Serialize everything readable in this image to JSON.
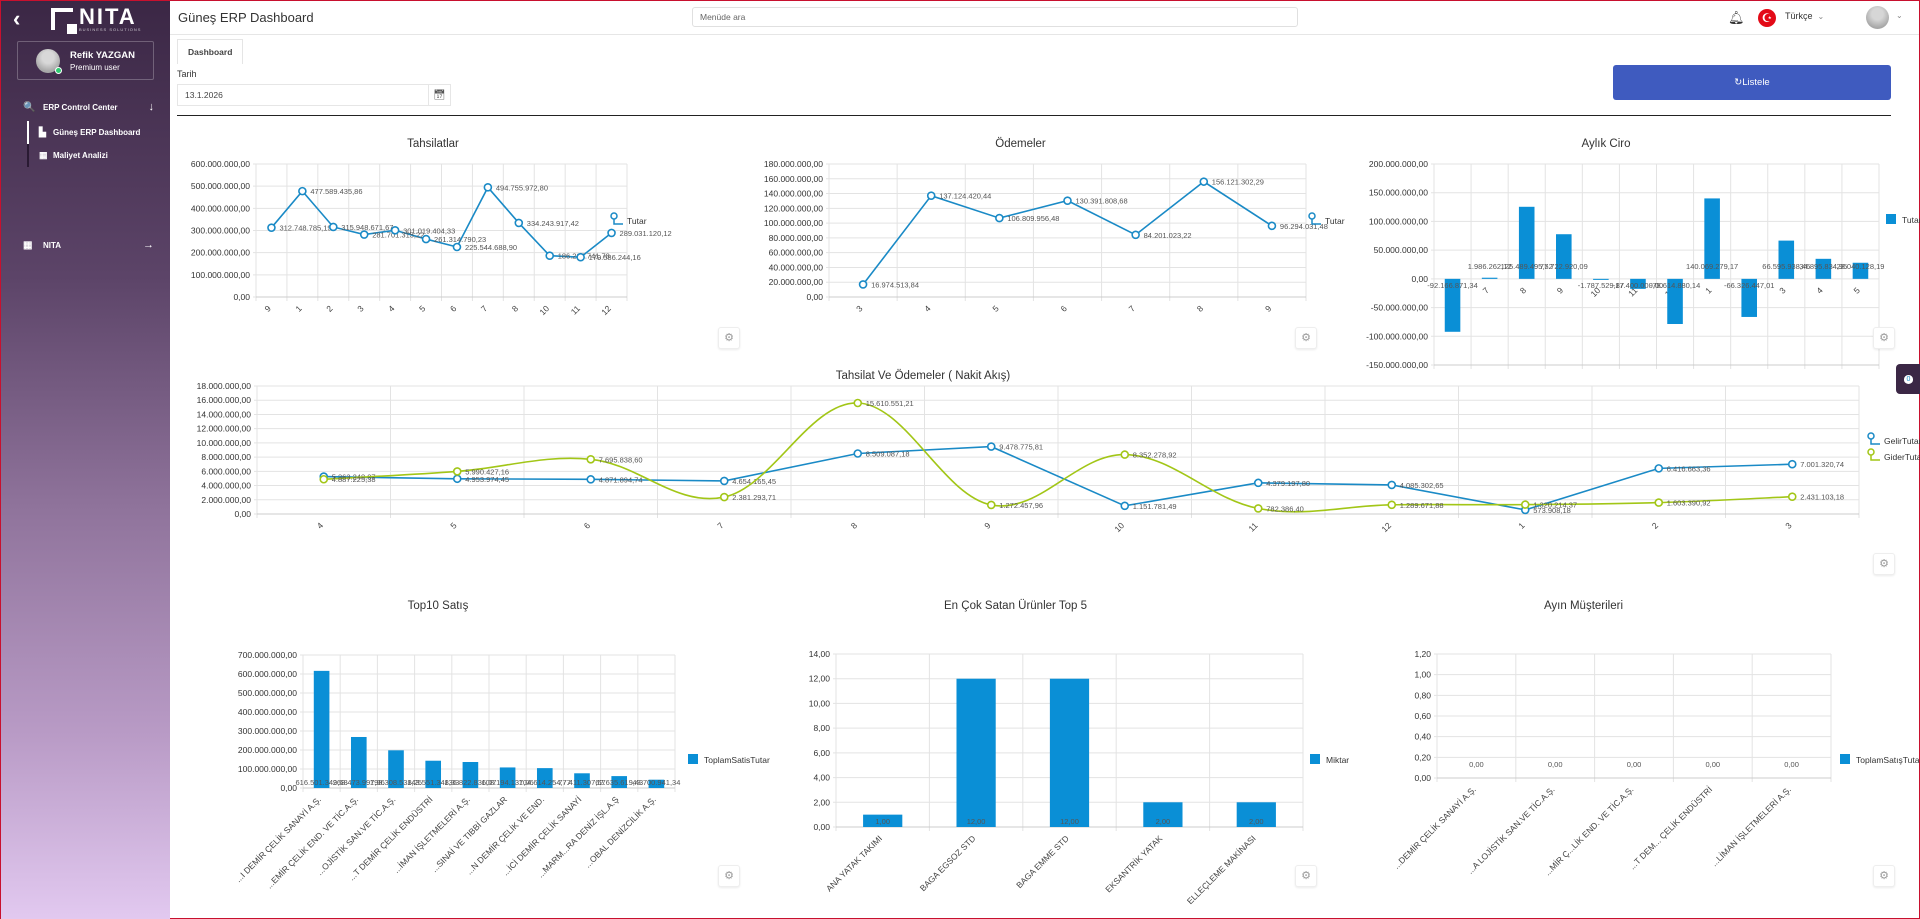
{
  "sidebar": {
    "logo_text": "NITA",
    "logo_sub": "BUSINESS SOLUTIONS",
    "user_name": "Refik YAZGAN",
    "user_role": "Premium user",
    "groups": [
      {
        "label": "ERP Control Center",
        "icon": "search-chart-icon",
        "arrow": "↓",
        "items": [
          {
            "label": "Güneş ERP Dashboard",
            "icon": "chart-icon",
            "active": true
          },
          {
            "label": "Maliyet Analizi",
            "icon": "calculator-icon",
            "active": false
          }
        ]
      },
      {
        "label": "NITA",
        "icon": "grid-icon",
        "arrow": "→",
        "items": []
      }
    ]
  },
  "header": {
    "title": "Güneş ERP Dashboard",
    "search_placeholder": "Menüde ara",
    "language": "Türkçe"
  },
  "tabs": [
    {
      "label": "Dashboard",
      "active": true
    }
  ],
  "filter": {
    "date_label": "Tarih",
    "date_value": "13.1.2026",
    "list_button": "Listele",
    "list_icon": "↻"
  },
  "chat_badge": "0",
  "chart_data": [
    {
      "id": "tahsilatlar",
      "type": "line",
      "title": "Tahsilatlar",
      "categories": [
        "9",
        "1",
        "2",
        "3",
        "4",
        "5",
        "6",
        "7",
        "8",
        "10",
        "11",
        "12"
      ],
      "series": [
        {
          "name": "Tutar",
          "color": "#1a8ac6",
          "values": [
            312748785.19,
            477589435.86,
            315948671.67,
            281701315.22,
            301019404.33,
            261314790.23,
            225544688.9,
            494755972.8,
            334243917.42,
            186264741.78,
            179586244.16,
            289031120.12
          ]
        }
      ],
      "yticks": [
        "0,00",
        "100.000.000,00",
        "200.000.000,00",
        "300.000.000,00",
        "400.000.000,00",
        "500.000.000,00",
        "600.000.000,00"
      ],
      "ylim": [
        0,
        600000000
      ],
      "grid": true,
      "legend": "right"
    },
    {
      "id": "odemeler",
      "type": "line",
      "title": "Ödemeler",
      "categories": [
        "3",
        "4",
        "5",
        "6",
        "7",
        "8",
        "9"
      ],
      "series": [
        {
          "name": "Tutar",
          "color": "#1a8ac6",
          "values": [
            16974513.84,
            137124420.44,
            106809956.48,
            130391808.68,
            84201023.22,
            156121302.29,
            96294031.48
          ]
        }
      ],
      "yticks": [
        "0,00",
        "20.000.000,00",
        "40.000.000,00",
        "60.000.000,00",
        "80.000.000,00",
        "100.000.000,00",
        "120.000.000,00",
        "140.000.000,00",
        "160.000.000,00",
        "180.000.000,00"
      ],
      "ylim": [
        0,
        180000000
      ],
      "grid": true,
      "legend": "right"
    },
    {
      "id": "aylik-ciro",
      "type": "bar",
      "title": "Aylık Ciro",
      "categories": [
        "6",
        "7",
        "8",
        "9",
        "10",
        "11",
        "12",
        "1",
        "2",
        "3",
        "4",
        "5"
      ],
      "series": [
        {
          "name": "Tutar",
          "color": "#0a8fd6",
          "values": [
            -92166871.34,
            1986262.12,
            125489495.52,
            77722920.09,
            -1787529.87,
            -17400000.0,
            -78614880.14,
            140069279.17,
            -66326447.01,
            66595938.46,
            34895834.95,
            28040128.19
          ]
        }
      ],
      "yticks": [
        "-150.000.000,00",
        "-100.000.000,00",
        "-50.000.000,00",
        "0,00",
        "50.000.000,00",
        "100.000.000,00",
        "150.000.000,00",
        "200.000.000,00"
      ],
      "ylim": [
        -150000000,
        200000000
      ],
      "grid": true,
      "legend": "right"
    },
    {
      "id": "nakit-akis",
      "type": "line",
      "title": "Tahsilat Ve Ödemeler ( Nakit Akış)",
      "categories": [
        "4",
        "5",
        "6",
        "7",
        "8",
        "9",
        "10",
        "11",
        "12",
        "1",
        "2",
        "3"
      ],
      "series": [
        {
          "name": "GelirTutar",
          "color": "#1a8ac6",
          "smooth": false,
          "values": [
            5263248.07,
            4953974.45,
            4871894.74,
            4654165.45,
            8509087.18,
            9478775.81,
            1151781.49,
            4379197.8,
            4085302.65,
            573908.18,
            6416663.36,
            7001320.74
          ]
        },
        {
          "name": "GiderTutar",
          "color": "#a2c617",
          "smooth": true,
          "values": [
            4887225.38,
            5990427.16,
            7695838.6,
            2381293.71,
            15610551.21,
            1272457.96,
            8352278.92,
            782386.4,
            1289671.88,
            1320214.37,
            1603390.92,
            2431103.18
          ]
        }
      ],
      "yticks": [
        "0,00",
        "2.000.000,00",
        "4.000.000,00",
        "6.000.000,00",
        "8.000.000,00",
        "10.000.000,00",
        "12.000.000,00",
        "14.000.000,00",
        "16.000.000,00",
        "18.000.000,00"
      ],
      "ylim": [
        0,
        18000000
      ],
      "grid": true,
      "legend": "right"
    },
    {
      "id": "top10-satis",
      "type": "bar",
      "title": "Top10  Satış",
      "categories": [
        "...I DEMİR ÇELİK SANAYİ A.Ş.",
        "...EMİR ÇELİK END. VE TİC.A.Ş.",
        "...OJİSTİK SAN.VE TİC.A.Ş.",
        "...T DEMİR ÇELİK ENDÜSTRİ",
        "...İMAN İŞLETMELERİ A.Ş.",
        "...SINAİ VE TIBBİ GAZLAR",
        "...N DEMİR ÇELİK VE END.",
        "...İCİ DEMİR ÇELİK SANAYİ",
        "...MARM...RA DENİZ İŞL.A.Ş",
        "...OBAL DENİZCİLİK A.Ş."
      ],
      "series": [
        {
          "name": "ToplamSatisTutar",
          "color": "#0a8fd6",
          "values": [
            616501349.68,
            268473997.96,
            198308538.25,
            143551348.33,
            136822836.07,
            108194137.06,
            104614254.77,
            77411307.57,
            62635619.43,
            43700941.34
          ]
        }
      ],
      "value_labels": [
        "616.501.349,68",
        "268.473.997,96",
        "198.308.538,25",
        "143.551.348,33",
        "136.822.836,07",
        "108.194.137,06",
        "104.614.254,77",
        "77.411.307,57",
        "62.635.619,43",
        "43.700.941,34"
      ],
      "yticks": [
        "0,00",
        "100.000.000,00",
        "200.000.000,00",
        "300.000.000,00",
        "400.000.000,00",
        "500.000.000,00",
        "600.000.000,00",
        "700.000.000,00"
      ],
      "ylim": [
        0,
        700000000
      ],
      "grid": true,
      "legend": "right"
    },
    {
      "id": "top5-urun",
      "type": "bar",
      "title": "En Çok Satan Ürünler Top 5",
      "categories": [
        "ANA YATAK TAKIMI",
        "BAGA EGSOZ STD",
        "BAGA EMME STD",
        "EKSANTRİK YATAK",
        "ELLEÇLEME MAKİNASI"
      ],
      "series": [
        {
          "name": "Miktar",
          "color": "#0a8fd6",
          "values": [
            1,
            12,
            12,
            2,
            2
          ]
        }
      ],
      "value_labels": [
        "1,00",
        "12,00",
        "12,00",
        "2,00",
        "2,00"
      ],
      "yticks": [
        "0,00",
        "2,00",
        "4,00",
        "6,00",
        "8,00",
        "10,00",
        "12,00",
        "14,00"
      ],
      "ylim": [
        0,
        14
      ],
      "grid": true,
      "legend": "right"
    },
    {
      "id": "ayin-musterileri",
      "type": "bar",
      "title": "Ayın Müşterileri",
      "categories": [
        "...DEMİR ÇELİK SANAYİ A.Ş.",
        "...A LOJİSTİK SAN.VE TİC.A.Ş.",
        "...MİR Ç...LİK END. VE TİC.A.Ş.",
        "...T DEM... ÇELİK ENDÜSTRİ",
        "...LİMAN İŞLETMELERİ A.Ş."
      ],
      "series": [
        {
          "name": "ToplamSatışTutar",
          "color": "#0a8fd6",
          "values": [
            0,
            0,
            0,
            0,
            0
          ]
        }
      ],
      "value_labels": [
        "0,00",
        "0,00",
        "0,00",
        "0,00",
        "0,00"
      ],
      "yticks": [
        "0,00",
        "0,20",
        "0,40",
        "0,60",
        "0,80",
        "1,00",
        "1,20"
      ],
      "ylim": [
        0,
        1.2
      ],
      "grid": true,
      "legend": "right"
    }
  ]
}
